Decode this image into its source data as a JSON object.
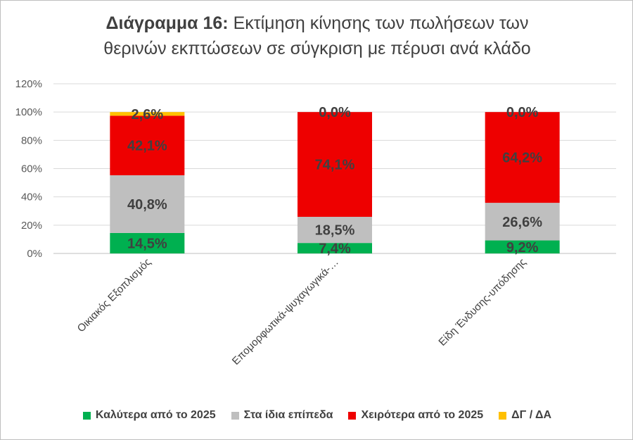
{
  "chart_data": {
    "type": "bar",
    "stacked": true,
    "title_bold": "Διάγραμμα 16:",
    "title_line1": "Εκτίμηση κίνησης των πωλήσεων των",
    "title_line2": "θερινών εκπτώσεων σε σύγκριση με πέρυσι ανά κλάδο",
    "categories": [
      "Οικιακός Εξοπλισμός",
      "Επομορφωτικά-ψυχαγωγικά-…",
      "Είδη Ένδυσης-υπόδησης"
    ],
    "series": [
      {
        "name": "Καλύτερα από το 2025",
        "color": "#00b050",
        "values": [
          14.5,
          7.4,
          9.2
        ],
        "labels": [
          "14,5%",
          "7,4%",
          "9,2%"
        ]
      },
      {
        "name": "Στα ίδια επίπεδα",
        "color": "#bfbfbf",
        "values": [
          40.8,
          18.5,
          26.6
        ],
        "labels": [
          "40,8%",
          "18,5%",
          "26,6%"
        ]
      },
      {
        "name": "Χειρότερα από το 2025",
        "color": "#ee0000",
        "values": [
          42.1,
          74.1,
          64.2
        ],
        "labels": [
          "42,1%",
          "74,1%",
          "64,2%"
        ]
      },
      {
        "name": "ΔΓ / ΔΑ",
        "color": "#ffc000",
        "values": [
          2.6,
          0.0,
          0.0
        ],
        "labels": [
          "2,6%",
          "0,0%",
          "0,0%"
        ]
      }
    ],
    "yticks": [
      "0%",
      "20%",
      "40%",
      "60%",
      "80%",
      "100%",
      "120%"
    ],
    "ylim": [
      0,
      120
    ],
    "grid": true,
    "legend_position": "bottom"
  }
}
